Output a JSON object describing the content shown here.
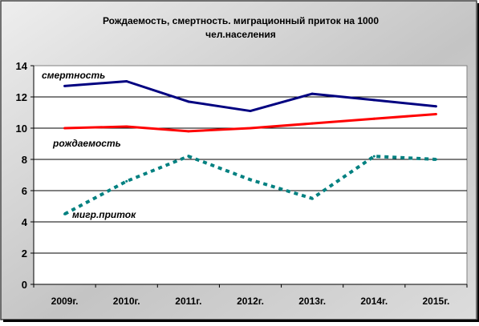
{
  "chart_data": {
    "type": "line",
    "title_line1": "Рождаемость, смертность. миграционный приток на 1000",
    "title_line2": "чел.населения",
    "categories": [
      "2009г.",
      "2010г.",
      "2011г.",
      "2012г.",
      "2013г.",
      "2014г.",
      "2015г."
    ],
    "ylim": [
      0,
      14
    ],
    "yticks": [
      0,
      2,
      4,
      6,
      8,
      10,
      12,
      14
    ],
    "grid": true,
    "series": [
      {
        "name": "смертность",
        "values": [
          12.7,
          13.0,
          11.7,
          11.1,
          12.2,
          11.8,
          11.4
        ],
        "color": "#000080",
        "style": "solid"
      },
      {
        "name": "рождаемость",
        "values": [
          10.0,
          10.1,
          9.8,
          10.0,
          10.3,
          10.6,
          10.9
        ],
        "color": "#ff0000",
        "style": "solid"
      },
      {
        "name": "мигр.приток",
        "values": [
          4.5,
          6.6,
          8.2,
          6.7,
          5.5,
          8.2,
          8.0
        ],
        "color": "#008080",
        "style": "dashed"
      }
    ],
    "colors": {
      "frame_bg": "#c7c7c7",
      "plot_bg": "#ffffff",
      "grid": "#000000"
    }
  }
}
